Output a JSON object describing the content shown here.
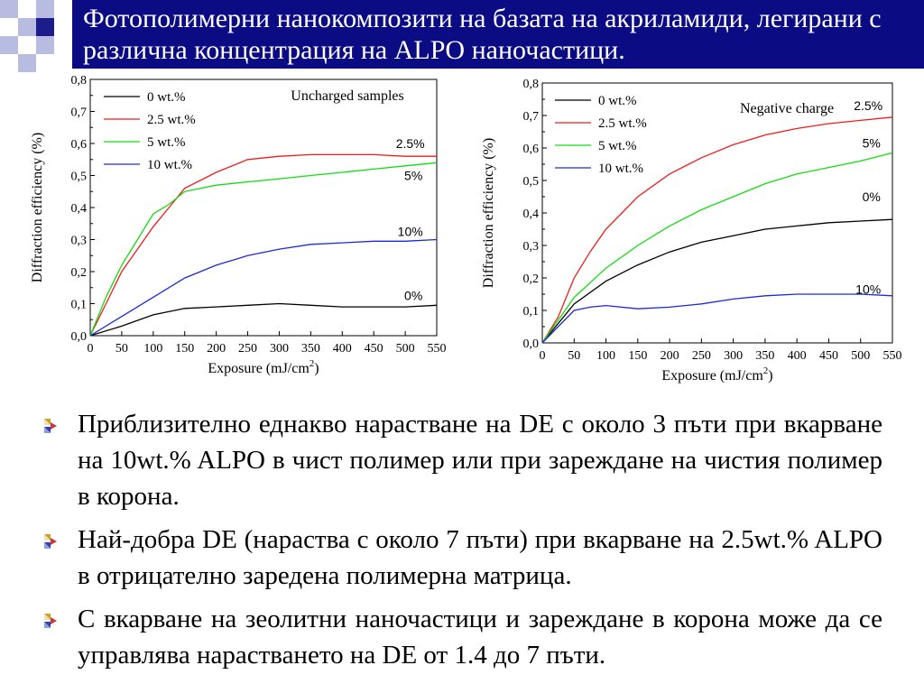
{
  "slide": {
    "title": "Фотополимерни нанокомпозити на базата на акриламиди, легирани с различна концентрация на ALPO наночастици.",
    "colors": {
      "title_bg": "#0b0b84",
      "title_text": "#ffffff",
      "deco_dark": "#1c1c8a",
      "deco_light": "#b8bce0"
    }
  },
  "bullets": [
    {
      "icon": "bullet-arrow-icon",
      "text": "Приблизително еднакво нарастване на DE с около 3 пъти при вкарване на 10wt.% ALPO в чист полимер или при зареждане на чистия полимер в корона."
    },
    {
      "icon": "bullet-arrow-icon",
      "text": "Най-добра DE (нараства с около 7 пъти) при вкарване на 2.5wt.% ALPO в отрицателно заредена  полимерна матрица."
    },
    {
      "icon": "bullet-arrow-icon",
      "text": "С вкарване на зеолитни наночастици и зареждане в корона може да се управлява нарастването на DE от 1.4 до 7 пъти."
    }
  ],
  "chart_data": [
    {
      "type": "line",
      "title": "Uncharged samples",
      "xlabel": "Exposure (mJ/cm",
      "xlabel_sup": "2",
      "xlabel_suffix": ")",
      "ylabel": "Diffraction efficiency (%)",
      "xlim": [
        0,
        550
      ],
      "ylim": [
        0,
        0.8
      ],
      "xticks": [
        "0",
        "50",
        "100",
        "150",
        "200",
        "250",
        "300",
        "350",
        "400",
        "450",
        "500",
        "550"
      ],
      "yticks": [
        "0,0",
        "0,1",
        "0,2",
        "0,3",
        "0,4",
        "0,5",
        "0,6",
        "0,7",
        "0,8"
      ],
      "legend_position": "top-left",
      "grid": false,
      "series": [
        {
          "name": "0 wt.%",
          "color": "#000000",
          "x": [
            0,
            50,
            100,
            150,
            200,
            250,
            300,
            350,
            400,
            450,
            500,
            550
          ],
          "y": [
            0,
            0.03,
            0.065,
            0.085,
            0.09,
            0.095,
            0.1,
            0.095,
            0.09,
            0.09,
            0.09,
            0.095
          ]
        },
        {
          "name": "2.5 wt.%",
          "color": "#ee1c1c",
          "x": [
            0,
            25,
            50,
            75,
            100,
            125,
            150,
            200,
            250,
            300,
            350,
            400,
            450,
            500,
            550
          ],
          "y": [
            0,
            0.1,
            0.2,
            0.27,
            0.34,
            0.4,
            0.46,
            0.51,
            0.55,
            0.56,
            0.565,
            0.565,
            0.565,
            0.56,
            0.56
          ]
        },
        {
          "name": "5 wt.%",
          "color": "#11dd11",
          "x": [
            0,
            25,
            50,
            75,
            100,
            125,
            150,
            200,
            250,
            300,
            350,
            400,
            450,
            500,
            550
          ],
          "y": [
            0,
            0.12,
            0.22,
            0.3,
            0.38,
            0.41,
            0.45,
            0.47,
            0.48,
            0.49,
            0.5,
            0.51,
            0.52,
            0.53,
            0.54
          ]
        },
        {
          "name": "10 wt.%",
          "color": "#1c2ad6",
          "x": [
            0,
            50,
            100,
            150,
            200,
            250,
            300,
            350,
            400,
            450,
            500,
            550
          ],
          "y": [
            0,
            0.06,
            0.12,
            0.18,
            0.22,
            0.25,
            0.27,
            0.285,
            0.29,
            0.295,
            0.295,
            0.3
          ]
        }
      ],
      "annotations": [
        {
          "text": "2.5%",
          "x": 508,
          "y": 0.6
        },
        {
          "text": "5%",
          "x": 513,
          "y": 0.5
        },
        {
          "text": "10%",
          "x": 508,
          "y": 0.325
        },
        {
          "text": "0%",
          "x": 513,
          "y": 0.125
        }
      ]
    },
    {
      "type": "line",
      "title": "Negative charge",
      "xlabel": "Exposure (mJ/cm",
      "xlabel_sup": "2",
      "xlabel_suffix": ")",
      "ylabel": "Diffraction efficiency (%)",
      "xlim": [
        0,
        550
      ],
      "ylim": [
        0,
        0.8
      ],
      "xticks": [
        "0",
        "50",
        "100",
        "150",
        "200",
        "250",
        "300",
        "350",
        "400",
        "450",
        "500",
        "550"
      ],
      "yticks": [
        "0,0",
        "0,1",
        "0,2",
        "0,3",
        "0,4",
        "0,5",
        "0,6",
        "0,7",
        "0,8"
      ],
      "legend_position": "top-left",
      "grid": false,
      "series": [
        {
          "name": "0 wt.%",
          "color": "#000000",
          "x": [
            0,
            50,
            100,
            150,
            200,
            250,
            300,
            350,
            400,
            450,
            500,
            550
          ],
          "y": [
            0,
            0.12,
            0.19,
            0.24,
            0.28,
            0.31,
            0.33,
            0.35,
            0.36,
            0.37,
            0.375,
            0.38
          ]
        },
        {
          "name": "2.5 wt.%",
          "color": "#ee1c1c",
          "x": [
            0,
            25,
            50,
            75,
            100,
            150,
            200,
            250,
            300,
            350,
            400,
            450,
            500,
            550
          ],
          "y": [
            0,
            0.08,
            0.2,
            0.28,
            0.35,
            0.45,
            0.52,
            0.57,
            0.61,
            0.64,
            0.66,
            0.675,
            0.685,
            0.695
          ]
        },
        {
          "name": "5 wt.%",
          "color": "#11dd11",
          "x": [
            0,
            50,
            100,
            150,
            200,
            250,
            300,
            350,
            400,
            450,
            500,
            550
          ],
          "y": [
            0,
            0.14,
            0.23,
            0.3,
            0.36,
            0.41,
            0.45,
            0.49,
            0.52,
            0.54,
            0.56,
            0.585
          ]
        },
        {
          "name": "10 wt.%",
          "color": "#1c2ad6",
          "x": [
            0,
            25,
            50,
            75,
            100,
            150,
            200,
            250,
            300,
            350,
            400,
            450,
            500,
            550
          ],
          "y": [
            0,
            0.05,
            0.1,
            0.11,
            0.115,
            0.105,
            0.11,
            0.12,
            0.135,
            0.145,
            0.15,
            0.15,
            0.15,
            0.145
          ]
        }
      ],
      "annotations": [
        {
          "text": "2.5%",
          "x": 512,
          "y": 0.73
        },
        {
          "text": "5%",
          "x": 517,
          "y": 0.615
        },
        {
          "text": "0%",
          "x": 517,
          "y": 0.45
        },
        {
          "text": "10%",
          "x": 512,
          "y": 0.165
        }
      ]
    }
  ]
}
